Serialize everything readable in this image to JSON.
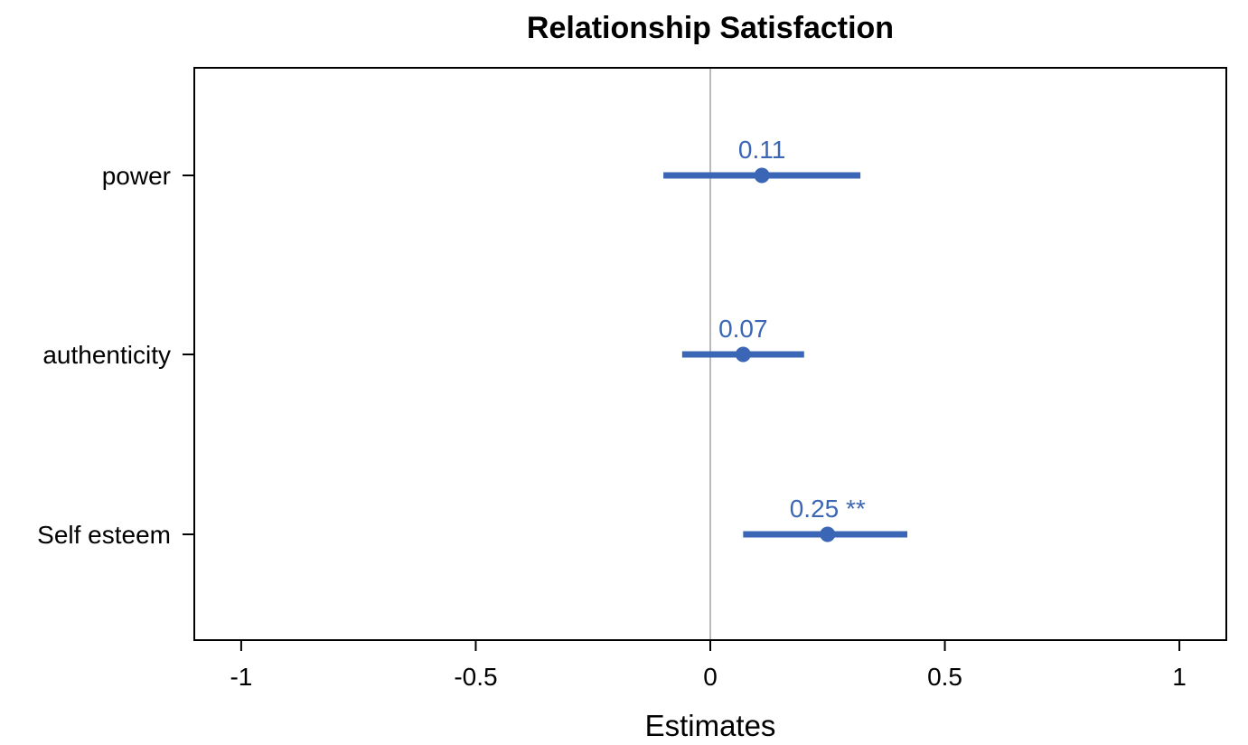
{
  "chart_data": {
    "type": "forest",
    "title": "Relationship Satisfaction",
    "xlabel": "Estimates",
    "ylabel": "",
    "xlim": [
      -1.1,
      1.1
    ],
    "x_ticks": [
      -1,
      -0.5,
      0,
      0.5,
      1
    ],
    "x_tick_labels": [
      "-1",
      "-0.5",
      "0",
      "0.5",
      "1"
    ],
    "reference_line": 0,
    "grid": false,
    "legend": "none",
    "colors": {
      "series": "#3a66b5",
      "reference_line": "#8c8c8c",
      "axis": "#000000"
    },
    "categories": [
      "power",
      "authenticity",
      "Self esteem"
    ],
    "estimates": [
      {
        "term": "power",
        "estimate": 0.11,
        "ci_low": -0.1,
        "ci_high": 0.32,
        "label": "0.11"
      },
      {
        "term": "authenticity",
        "estimate": 0.07,
        "ci_low": -0.06,
        "ci_high": 0.2,
        "label": "0.07"
      },
      {
        "term": "Self esteem",
        "estimate": 0.25,
        "ci_low": 0.07,
        "ci_high": 0.42,
        "label": "0.25 **"
      }
    ]
  }
}
